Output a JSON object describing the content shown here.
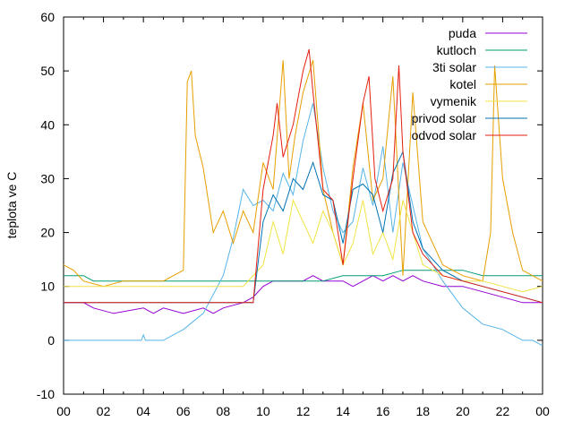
{
  "chart_data": {
    "type": "line",
    "title": "",
    "xlabel": "",
    "ylabel": "teplota ve C",
    "xlim": [
      0,
      24
    ],
    "ylim": [
      -10,
      60
    ],
    "grid": false,
    "legend_position": "top-right",
    "x_ticks": [
      "00",
      "02",
      "04",
      "06",
      "08",
      "10",
      "12",
      "14",
      "16",
      "18",
      "20",
      "22",
      "00"
    ],
    "y_ticks": [
      "-10",
      "0",
      "10",
      "20",
      "30",
      "40",
      "50",
      "60"
    ],
    "series": [
      {
        "name": "puda",
        "color": "#9400d3",
        "x": [
          0,
          1,
          1.5,
          2.5,
          4,
          4.5,
          5,
          6,
          7,
          7.5,
          8,
          9,
          9.5,
          10,
          10.5,
          11,
          11.5,
          12,
          12.5,
          13,
          14,
          14.5,
          15,
          15.5,
          16,
          16.5,
          17,
          17.5,
          18,
          19,
          20,
          21,
          22,
          23,
          24
        ],
        "y": [
          7,
          7,
          6,
          5,
          6,
          5,
          6,
          5,
          6,
          5,
          6,
          7,
          8,
          10,
          11,
          11,
          11,
          11,
          12,
          11,
          11,
          10,
          11,
          12,
          11,
          12,
          11,
          12,
          11,
          10,
          10,
          9,
          8,
          7,
          7
        ]
      },
      {
        "name": "kutloch",
        "color": "#009e73",
        "x": [
          0,
          1,
          1.5,
          2.5,
          3,
          4,
          5,
          6,
          7,
          8,
          9,
          9.5,
          10,
          10.5,
          11,
          12,
          13,
          14,
          15,
          15.5,
          16,
          17,
          18,
          19,
          20,
          21,
          22,
          23,
          24
        ],
        "y": [
          12,
          12,
          11,
          11,
          11,
          11,
          11,
          11,
          11,
          11,
          11,
          11,
          11,
          11,
          11,
          11,
          11,
          12,
          12,
          12,
          12,
          13,
          13,
          13,
          13,
          12,
          12,
          12,
          12
        ]
      },
      {
        "name": "3ti solar",
        "color": "#56b4e9",
        "x": [
          0,
          2,
          3,
          3.9,
          4,
          4.1,
          5,
          5.5,
          6,
          7,
          8,
          8.5,
          9,
          9.5,
          10,
          10.5,
          11,
          11.5,
          12,
          12.5,
          13,
          13.5,
          14,
          14.5,
          15,
          15.5,
          16,
          16.5,
          17,
          17.5,
          18,
          19,
          20,
          21,
          22,
          23,
          23.5,
          24
        ],
        "y": [
          0,
          0,
          0,
          0,
          1,
          0,
          0,
          1,
          2,
          5,
          12,
          19,
          28,
          25,
          26,
          24,
          31,
          27,
          37,
          44,
          32,
          24,
          20,
          22,
          32,
          25,
          36,
          20,
          33,
          25,
          17,
          11,
          6,
          3,
          2,
          0,
          0,
          -1
        ]
      },
      {
        "name": "kotel",
        "color": "#e69f00",
        "x": [
          0,
          0.5,
          1,
          2,
          3,
          4,
          5,
          6,
          6.2,
          6.4,
          6.6,
          7,
          7.5,
          8,
          8.5,
          9,
          9.5,
          10,
          10.5,
          11,
          11.3,
          11.6,
          12,
          12.5,
          13,
          13.5,
          14,
          14.5,
          15,
          15.5,
          16,
          16.5,
          17,
          17.5,
          18,
          19,
          20,
          21,
          21.4,
          21.6,
          22,
          22.5,
          23,
          24
        ],
        "y": [
          14,
          13,
          11,
          10,
          11,
          11,
          11,
          13,
          48,
          50,
          38,
          32,
          20,
          24,
          18,
          24,
          20,
          33,
          28,
          52,
          30,
          38,
          46,
          52,
          28,
          20,
          14,
          32,
          44,
          26,
          30,
          49,
          12,
          46,
          22,
          14,
          12,
          11,
          20,
          51,
          30,
          20,
          13,
          11
        ]
      },
      {
        "name": "vymenik",
        "color": "#f0e442",
        "x": [
          0,
          3,
          6,
          9,
          10,
          10.5,
          11,
          11.5,
          12,
          12.5,
          13,
          13.5,
          14,
          14.5,
          15,
          15.5,
          16,
          16.5,
          17,
          17.5,
          18,
          19,
          20,
          21,
          22,
          23,
          24
        ],
        "y": [
          10,
          10,
          10,
          10,
          14,
          22,
          16,
          26,
          22,
          18,
          24,
          20,
          14,
          18,
          26,
          16,
          20,
          15,
          26,
          20,
          14,
          12,
          11,
          11,
          10,
          9,
          10
        ]
      },
      {
        "name": "privod solar",
        "color": "#0072b2",
        "x": [
          0,
          6,
          9.5,
          10,
          10.5,
          11,
          11.5,
          12,
          12.5,
          13,
          13.5,
          14,
          14.5,
          15,
          15.5,
          16,
          16.5,
          17,
          17.5,
          18,
          19,
          20,
          21,
          22,
          23,
          24
        ],
        "y": [
          7,
          7,
          7,
          22,
          27,
          24,
          30,
          28,
          33,
          27,
          26,
          18,
          28,
          29,
          27,
          20,
          31,
          35,
          22,
          17,
          13,
          11,
          10,
          9,
          8,
          7
        ]
      },
      {
        "name": "odvod solar",
        "color": "#e51e10",
        "x": [
          0,
          6,
          9.5,
          10,
          10.5,
          10.7,
          11,
          11.5,
          12,
          12.3,
          12.5,
          13,
          13.5,
          14,
          14.5,
          15,
          15.3,
          15.6,
          16,
          16.5,
          16.8,
          17,
          17.5,
          18,
          19,
          20,
          21,
          22,
          23,
          24
        ],
        "y": [
          7,
          7,
          7,
          28,
          38,
          44,
          34,
          40,
          50,
          54,
          46,
          28,
          26,
          14,
          30,
          44,
          49,
          30,
          24,
          30,
          51,
          35,
          20,
          16,
          12,
          11,
          10,
          9,
          8,
          7
        ]
      }
    ]
  }
}
